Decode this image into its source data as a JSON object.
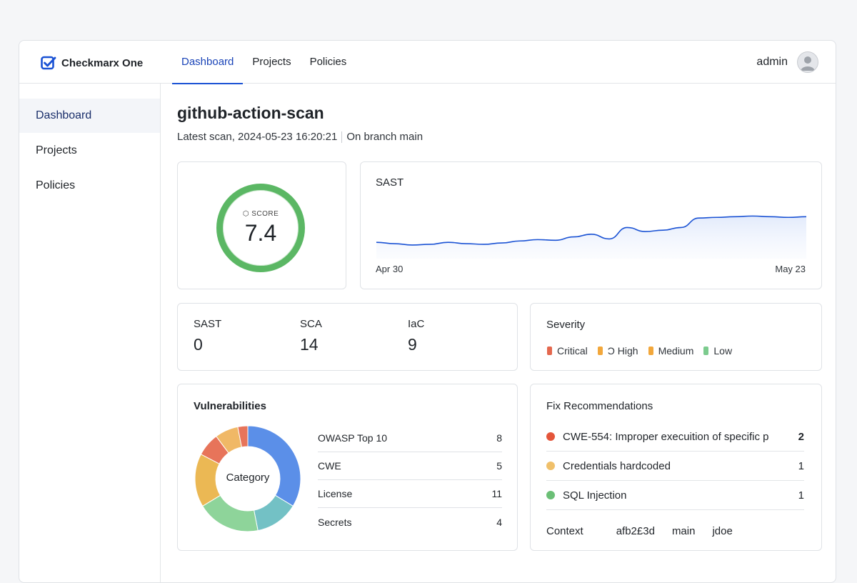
{
  "app": {
    "name": "Checkmarx One"
  },
  "topnav": {
    "tabs": [
      {
        "label": "Dashboard"
      },
      {
        "label": "Projects"
      },
      {
        "label": "Policies"
      }
    ]
  },
  "user": {
    "name": "admin"
  },
  "sidebar": {
    "items": [
      {
        "label": "Dashboard"
      },
      {
        "label": "Projects"
      },
      {
        "label": "Policies"
      }
    ]
  },
  "project": {
    "title": "github-action-scan",
    "latest_scan": "Latest scan, 2024-05-23 16:20:21",
    "branch": "On branch main"
  },
  "score": {
    "label": "SCORE",
    "value": "7.4",
    "color": "#5bb764"
  },
  "trend": {
    "title": "SAST",
    "start_label": "Apr 30",
    "end_label": "May 23",
    "chart_data": {
      "type": "area",
      "x": [
        0,
        1,
        2,
        3,
        4,
        5,
        6,
        7,
        8,
        9,
        10,
        11,
        12,
        13,
        14,
        15,
        16,
        17,
        18,
        19,
        20,
        21,
        22,
        23,
        24
      ],
      "values": [
        20,
        18,
        16,
        17,
        20,
        18,
        17,
        19,
        22,
        24,
        23,
        28,
        32,
        25,
        42,
        36,
        38,
        42,
        56,
        57,
        58,
        59,
        58,
        57,
        58
      ],
      "ylim": [
        0,
        100
      ],
      "color": "#1a52d4"
    }
  },
  "counts": [
    {
      "label": "SAST",
      "value": "0"
    },
    {
      "label": "SCA",
      "value": "14"
    },
    {
      "label": "IaC",
      "value": "9"
    }
  ],
  "severity": {
    "title": "Severity",
    "items": [
      {
        "label": "Critical",
        "color": "#e4684e"
      },
      {
        "label": "Ͻ High",
        "color": "#f2a73b"
      },
      {
        "label": "Medium",
        "color": "#f2a73b"
      },
      {
        "label": "Low",
        "color": "#7ccb8e"
      }
    ]
  },
  "vulnerabilities": {
    "title": "Vulnerabilities",
    "center_label": "Category",
    "categories": [
      {
        "label": "OWASP Top 10",
        "value": "8"
      },
      {
        "label": "CWE",
        "value": "5"
      },
      {
        "label": "License",
        "value": "11"
      },
      {
        "label": "Secrets",
        "value": "4"
      }
    ],
    "chart_data": {
      "type": "pie",
      "slices": [
        {
          "value": 33,
          "color": "#5b8fe8"
        },
        {
          "value": 13,
          "color": "#73c1c5"
        },
        {
          "value": 19,
          "color": "#8ed49a"
        },
        {
          "value": 16,
          "color": "#ebb854"
        },
        {
          "value": 7,
          "color": "#e7745a"
        },
        {
          "value": 7,
          "color": "#f0b866"
        },
        {
          "value": 3,
          "color": "#e7745a"
        }
      ]
    }
  },
  "fix": {
    "title": "Fix Recommendations",
    "items": [
      {
        "label": "CWE-554: Improper execuition of specific p",
        "count": "2",
        "color": "#e4553a"
      },
      {
        "label": "Credentials hardcoded",
        "count": "1",
        "color": "#f0c06a"
      },
      {
        "label": "SQL Injection",
        "count": "1",
        "color": "#6bbf76"
      }
    ],
    "context": {
      "label": "Context",
      "commit": "afb2£3d",
      "branch": "main",
      "author": "jdoe"
    }
  }
}
